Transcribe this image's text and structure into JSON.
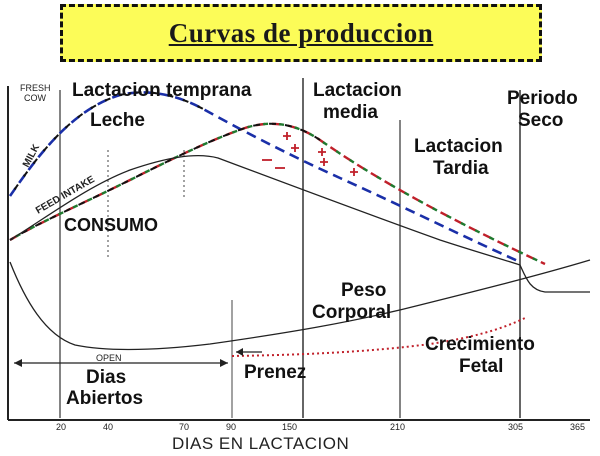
{
  "title": "Curvas de produccion",
  "labels": {
    "fresh_cow_1": "FRESH",
    "fresh_cow_2": "COW",
    "early_lactation": "Lactacion temprana",
    "mid_lactation_1": "Lactacion",
    "mid_lactation_2": "media",
    "dry_period_1": "Periodo",
    "dry_period_2": "Seco",
    "milk_es": "Leche",
    "milk_en": "MILK",
    "feed_intake_en": "FEED INTAKE",
    "consumption": "CONSUMO",
    "late_lactation_1": "Lactacion",
    "late_lactation_2": "Tardia",
    "body_weight_1": "Peso",
    "body_weight_2": "Corporal",
    "fetal_growth_1": "Crecimiento",
    "fetal_growth_2": "Fetal",
    "open_en": "OPEN",
    "open_days_1": "Dias",
    "open_days_2": "Abiertos",
    "pregnancy": "Prenez",
    "x_axis": "DIAS EN LACTACION"
  },
  "x_ticks": [
    "20",
    "40",
    "70",
    "90",
    "150",
    "210",
    "305",
    "365"
  ],
  "chart_data": {
    "type": "line",
    "xlabel": "DIAS EN LACTACION",
    "x_ticks": [
      20,
      40,
      70,
      90,
      150,
      210,
      305,
      365
    ],
    "series": [
      {
        "name": "Leche",
        "x": [
          0,
          20,
          40,
          60,
          70,
          90,
          120,
          150,
          210,
          270,
          305
        ],
        "y": [
          5,
          7.5,
          9.2,
          9.5,
          9.3,
          8.8,
          7.9,
          7.0,
          5.0,
          3.0,
          1.8
        ]
      },
      {
        "name": "CONSUMO",
        "x": [
          0,
          20,
          40,
          70,
          90,
          120,
          150,
          210,
          270,
          305
        ],
        "y": [
          3,
          4,
          5.2,
          6.8,
          7.6,
          8.3,
          8.3,
          6.8,
          4.5,
          2.8
        ]
      },
      {
        "name": "Peso Corporal",
        "x": [
          0,
          20,
          40,
          70,
          90,
          150,
          210,
          305,
          365
        ],
        "y": [
          5.0,
          2.5,
          1.3,
          1.2,
          1.4,
          2.0,
          2.6,
          3.5,
          4.4
        ]
      },
      {
        "name": "Crecimiento Fetal",
        "x": [
          90,
          150,
          210,
          270,
          305
        ],
        "y": [
          0.5,
          0.6,
          0.8,
          1.3,
          2.2
        ]
      }
    ],
    "colors": {
      "milk": "#1a2fa8",
      "intake": "#c0202a",
      "late": "#1f7a2f",
      "line": "#222222",
      "fetal": "#c0202a"
    }
  }
}
